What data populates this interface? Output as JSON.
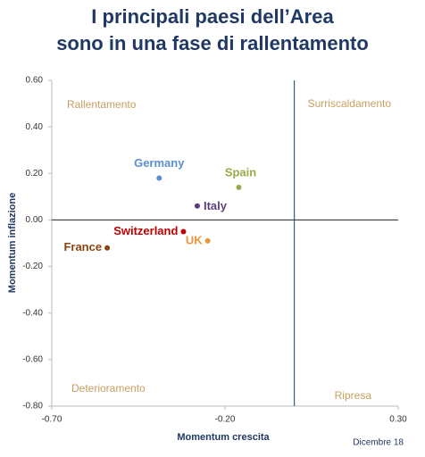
{
  "chart_data": {
    "type": "scatter",
    "title_lines": [
      "I principali paesi dell’Area",
      "sono in una fase di rallentamento"
    ],
    "x_label": "Momentum crescita",
    "y_label": "Momentum inflazione",
    "footnote": "Dicembre 18",
    "annotations": [
      "Rallentamento",
      "Surriscaldamento",
      "Deterioramento",
      "Ripresa"
    ],
    "xlim": [
      -0.7,
      0.3
    ],
    "xticks": [
      {
        "value": -0.7,
        "label": "-0.70"
      },
      {
        "value": -0.2,
        "label": "-0.20"
      },
      {
        "value": 0.3,
        "label": "0.30"
      }
    ],
    "ylim": [
      -0.8,
      0.6
    ],
    "yticks": [
      {
        "value": 0.6,
        "label": "0.60"
      },
      {
        "value": 0.4,
        "label": "0.40"
      },
      {
        "value": 0.2,
        "label": "0.20"
      },
      {
        "value": 0,
        "label": "0.00"
      },
      {
        "value": -0.2,
        "label": "-0.20"
      },
      {
        "value": -0.4,
        "label": "-0.40"
      },
      {
        "value": -0.6,
        "label": "-0.60"
      },
      {
        "value": -0.8,
        "label": "-0.80"
      }
    ],
    "reference_lines": {
      "x": 0,
      "y": 0
    },
    "series": [
      {
        "name": "Germany",
        "color": "#5b8fd0",
        "x": [
          -0.39
        ],
        "values": [
          0.18
        ]
      },
      {
        "name": "Spain",
        "color": "#9aaa4a",
        "x": [
          -0.16
        ],
        "values": [
          0.14
        ]
      },
      {
        "name": "Italy",
        "color": "#5a3e7a",
        "x": [
          -0.28
        ],
        "values": [
          0.06
        ]
      },
      {
        "name": "Switzerland",
        "color": "#c00000",
        "x": [
          -0.32
        ],
        "values": [
          -0.05
        ]
      },
      {
        "name": "UK",
        "color": "#e8963a",
        "x": [
          -0.25
        ],
        "values": [
          -0.09
        ]
      },
      {
        "name": "France",
        "color": "#8b4513",
        "x": [
          -0.54
        ],
        "values": [
          -0.12
        ]
      }
    ]
  }
}
